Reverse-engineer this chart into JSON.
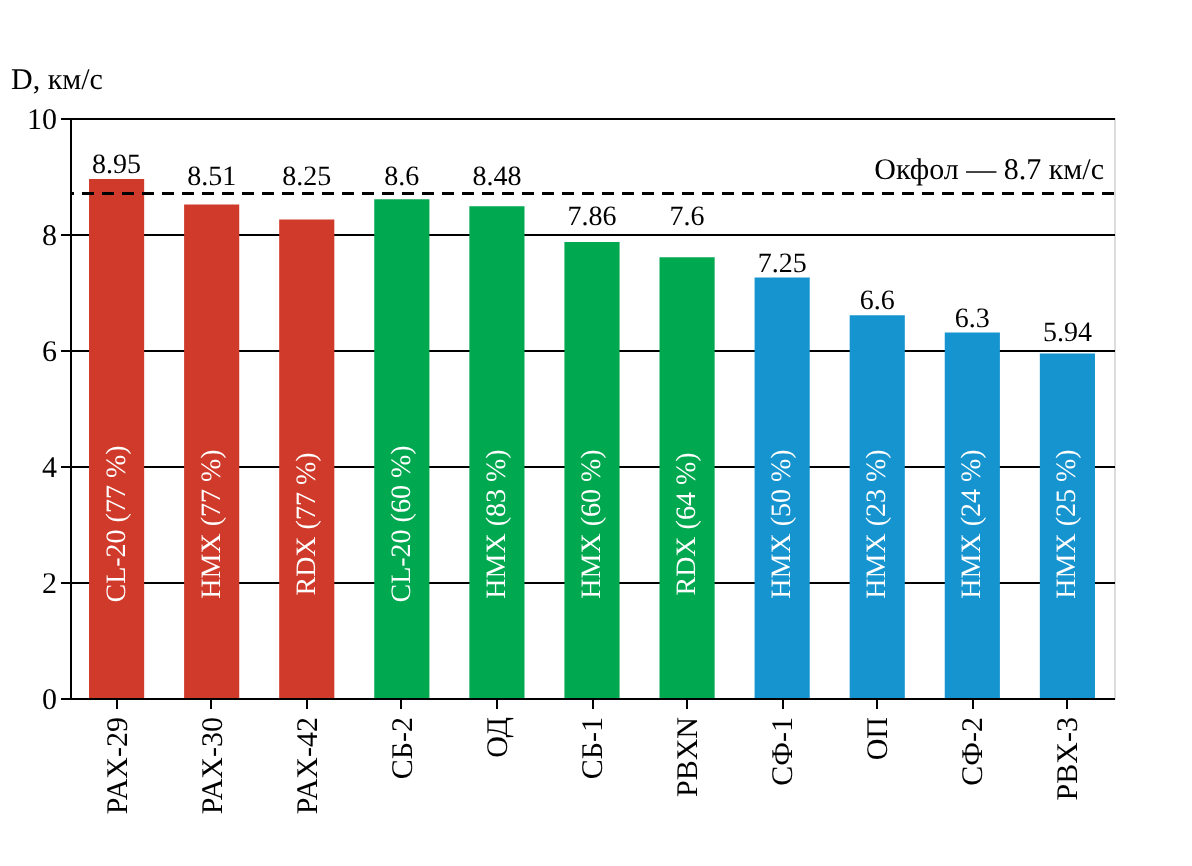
{
  "chart_data": {
    "type": "bar",
    "ylabel": "D, км/с",
    "categories": [
      "PAX-29",
      "PAX-30",
      "PAX-42",
      "СБ-2",
      "ОД",
      "СБ-1",
      "PBXN",
      "СФ-1",
      "ОП",
      "СФ-2",
      "PBX-3"
    ],
    "values": [
      8.95,
      8.51,
      8.25,
      8.6,
      8.48,
      7.86,
      7.6,
      7.25,
      6.6,
      6.3,
      5.94
    ],
    "colors": [
      "#d03a2a",
      "#d03a2a",
      "#d03a2a",
      "#00a84f",
      "#00a84f",
      "#00a84f",
      "#00a84f",
      "#1694cf",
      "#1694cf",
      "#1694cf",
      "#1694cf"
    ],
    "data_labels": true,
    "ylim": [
      0,
      10
    ],
    "yticks": [
      0,
      2,
      4,
      6,
      8,
      10
    ],
    "grid": "y",
    "ref_lines": [
      {
        "axis": "y",
        "value": 8.7,
        "label": "Окфол — 8.7 км/с",
        "color": "#000000",
        "line_style": "dashed"
      }
    ],
    "annotations": [
      "CL-20 (77 %)",
      "HMX (77 %)",
      "RDX (77 %)",
      "CL-20 (60 %)",
      "HMX (83 %)",
      "HMX (60 %)",
      "RDX (64 %)",
      "HMX (50 %)",
      "HMX (23 %)",
      "HMX (24 %)",
      "HMX (25 %)"
    ]
  }
}
